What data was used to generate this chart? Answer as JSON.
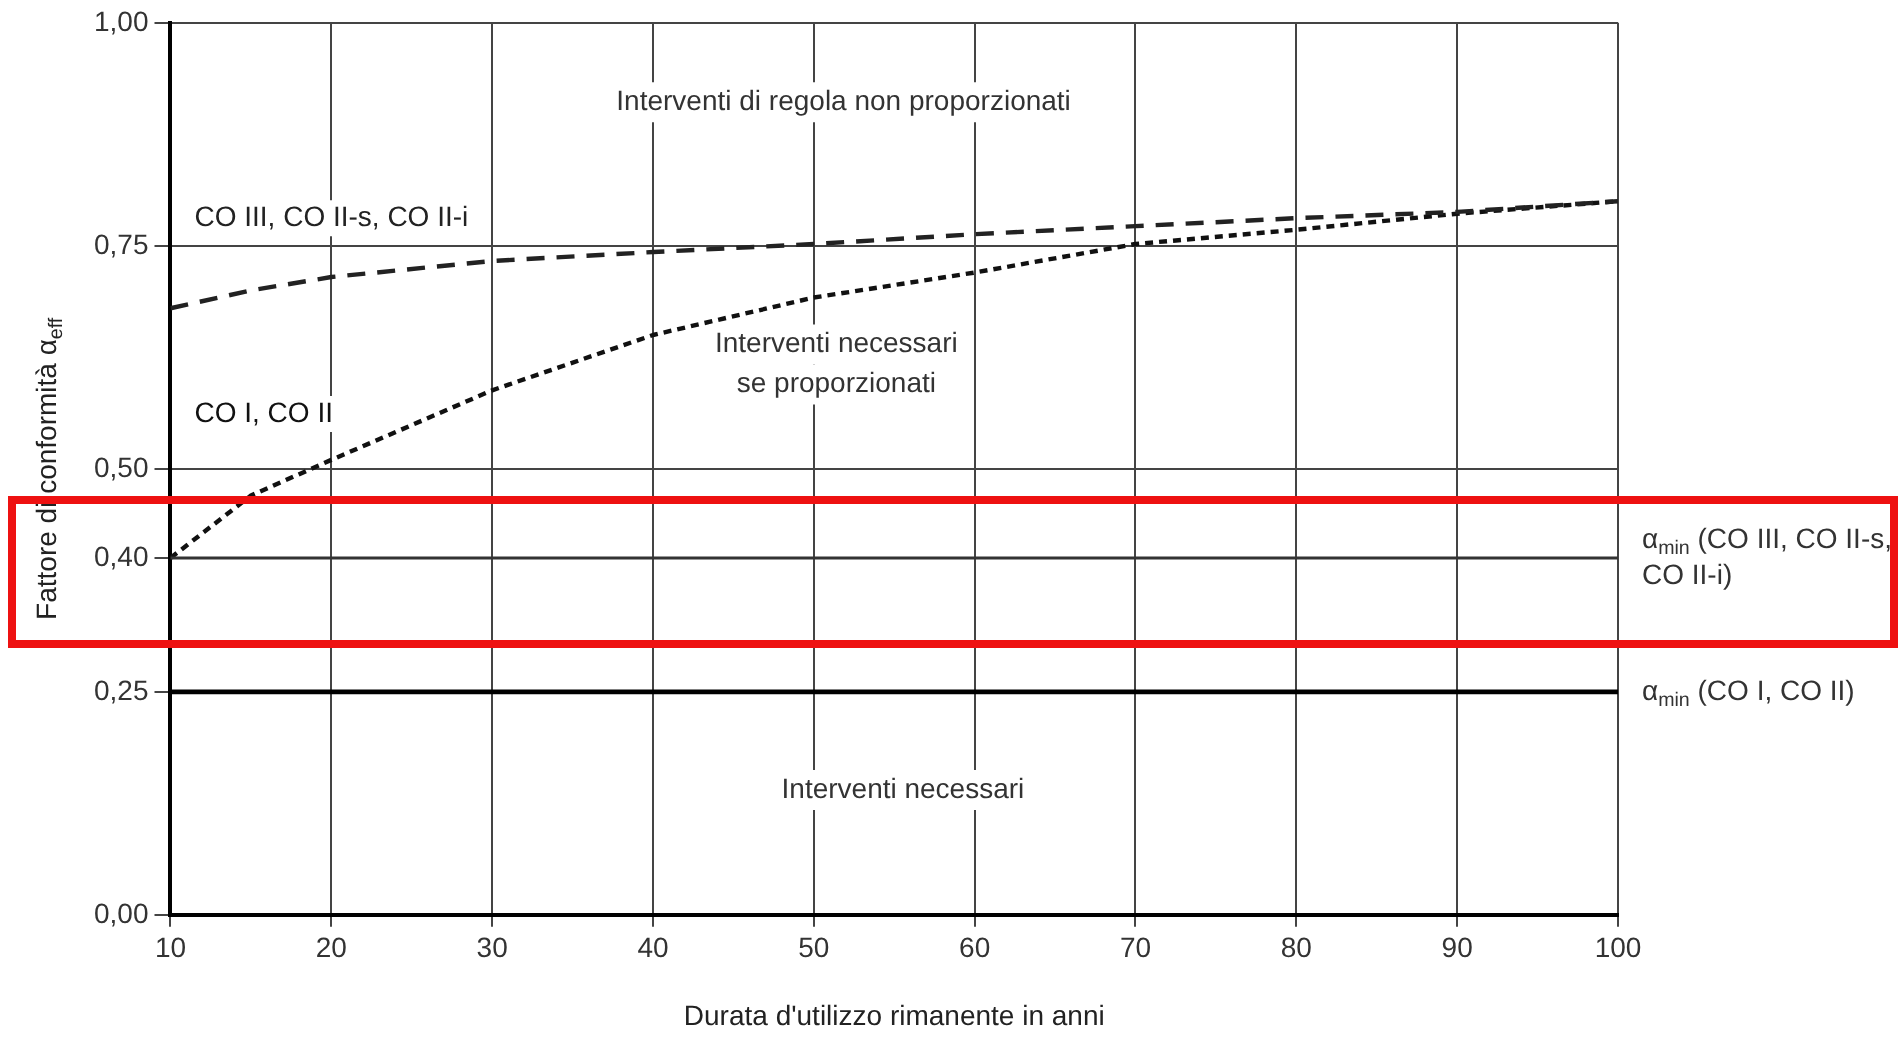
{
  "chart_data": {
    "type": "line",
    "xlabel": "Durata d'utilizzo rimanente in anni",
    "ylabel": "Fattore di conformità α$_{eff}$",
    "x": [
      10,
      15,
      20,
      30,
      40,
      50,
      60,
      70,
      80,
      90,
      100
    ],
    "series": [
      {
        "name": "CO III, CO II-s, CO II-i",
        "color": "#222222",
        "line_style": "dashed",
        "values": [
          0.68,
          0.7,
          0.715,
          0.733,
          0.743,
          0.752,
          0.763,
          0.772,
          0.781,
          0.788,
          0.8
        ]
      },
      {
        "name": "CO I, CO II",
        "color": "#111111",
        "line_style": "dotted",
        "values": [
          0.4,
          0.47,
          0.51,
          0.588,
          0.65,
          0.692,
          0.72,
          0.752,
          0.768,
          0.786,
          0.8
        ]
      }
    ],
    "xlim": [
      10,
      100
    ],
    "xticks": [
      10,
      20,
      30,
      40,
      50,
      60,
      70,
      80,
      90,
      100
    ],
    "ylim": [
      0,
      1
    ],
    "yticks": [
      {
        "value": 0,
        "label": "0,00"
      },
      {
        "value": 0.25,
        "label": "0,25"
      },
      {
        "value": 0.4,
        "label": "0,40"
      },
      {
        "value": 0.5,
        "label": "0,50"
      },
      {
        "value": 0.75,
        "label": "0,75"
      },
      {
        "value": 1,
        "label": "1,00"
      }
    ],
    "ref_lines": [
      {
        "axis": "y",
        "value": 0.4,
        "label": "α$_{min}$ (CO III, CO II-s, CO II-i)",
        "color": "#333333"
      },
      {
        "axis": "y",
        "value": 0.25,
        "label": "α$_{min}$ (CO I, CO II)",
        "color": "#000000"
      }
    ],
    "annotations": [
      "Interventi di regola non proporzionati",
      "Interventi necessari\nse proporzionati",
      "Interventi necessari"
    ],
    "grid": true,
    "legend": false,
    "marker": "none"
  }
}
